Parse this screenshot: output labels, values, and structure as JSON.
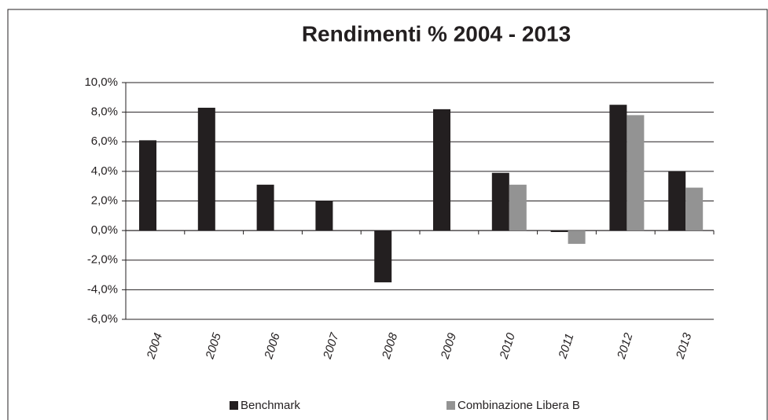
{
  "chart_data": {
    "type": "bar",
    "title": "Rendimenti % 2004 - 2013",
    "categories": [
      "2004",
      "2005",
      "2006",
      "2007",
      "2008",
      "2009",
      "2010",
      "2011",
      "2012",
      "2013"
    ],
    "series": [
      {
        "name": "Benchmark",
        "color": "#231f20",
        "values": [
          6.1,
          8.3,
          3.1,
          2.0,
          -3.5,
          8.2,
          3.9,
          -0.1,
          8.5,
          4.0
        ]
      },
      {
        "name": "Combinazione Libera B",
        "color": "#939393",
        "values": [
          null,
          null,
          null,
          null,
          null,
          null,
          3.1,
          -0.9,
          7.8,
          2.9
        ]
      }
    ],
    "ylim": [
      -6,
      10
    ],
    "yticks": [
      {
        "value": -6,
        "label": "-6,0%"
      },
      {
        "value": -4,
        "label": "-4,0%"
      },
      {
        "value": -2,
        "label": "-2,0%"
      },
      {
        "value": 0,
        "label": "0,0%"
      },
      {
        "value": 2,
        "label": "2,0%"
      },
      {
        "value": 4,
        "label": "4,0%"
      },
      {
        "value": 6,
        "label": "6,0%"
      },
      {
        "value": 8,
        "label": "8,0%"
      },
      {
        "value": 10,
        "label": "10,0%"
      }
    ],
    "grid": true,
    "legend": "bottom"
  }
}
